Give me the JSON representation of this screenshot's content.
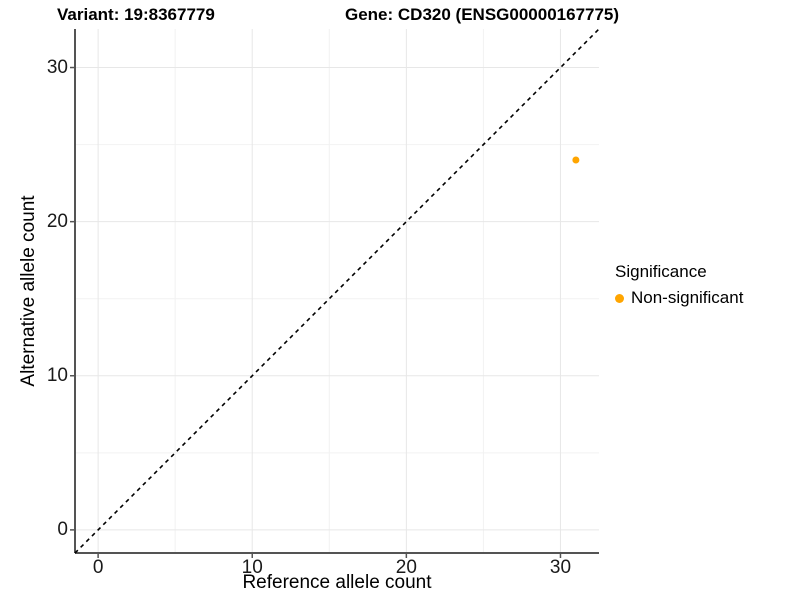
{
  "titles": {
    "left": "Variant: 19:8367779",
    "right": "Gene: CD320 (ENSG00000167775)"
  },
  "chart_data": {
    "type": "scatter",
    "xlabel": "Reference allele count",
    "ylabel": "Alternative allele count",
    "xlim": [
      -1.5,
      32.5
    ],
    "ylim": [
      -1.5,
      32.5
    ],
    "x_ticks": [
      0,
      10,
      20,
      30
    ],
    "y_ticks": [
      0,
      10,
      20,
      30
    ],
    "x_minor_ticks": [
      5,
      15,
      25
    ],
    "y_minor_ticks": [
      5,
      15,
      25
    ],
    "grid": true,
    "identity_line": {
      "equation": "y = x",
      "style": "dashed",
      "color": "#000000"
    },
    "series": [
      {
        "name": "Non-significant",
        "color": "#FFA500",
        "points": [
          {
            "x": 31,
            "y": 24
          }
        ]
      }
    ],
    "legend": {
      "title": "Significance",
      "position": "right",
      "items": [
        {
          "label": "Non-significant",
          "color": "#FFA500"
        }
      ]
    },
    "colors": {
      "axis_line": "#545454",
      "grid_major": "#e7e7e7",
      "grid_minor": "#f2f2f2",
      "tick_text": "#1a1a1a",
      "background": "#ffffff"
    }
  }
}
